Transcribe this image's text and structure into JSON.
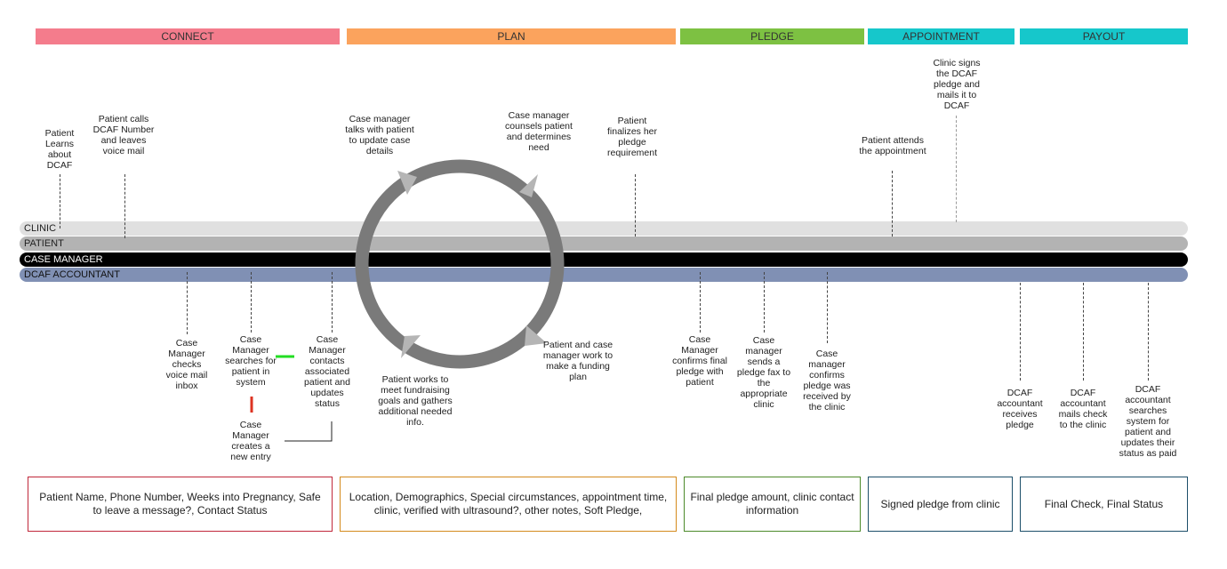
{
  "phases": [
    {
      "label": "CONNECT",
      "color": "#f47c8c"
    },
    {
      "label": "PLAN",
      "color": "#fba35d"
    },
    {
      "label": "PLEDGE",
      "color": "#7dc142"
    },
    {
      "label": "APPOINTMENT",
      "color": "#16c7cb"
    },
    {
      "label": "PAYOUT",
      "color": "#16c7cb"
    }
  ],
  "lanes": [
    {
      "label": "CLINIC",
      "color": "#e0e0e0"
    },
    {
      "label": "PATIENT",
      "color": "#b3b3b3"
    },
    {
      "label": "CASE MANAGER",
      "color": "#000000"
    },
    {
      "label": "DCAF ACCOUNTANT",
      "color": "#8090b4"
    }
  ],
  "steps": {
    "patient_learns": "Patient Learns about DCAF",
    "patient_calls": "Patient calls DCAF Number and leaves voice mail",
    "cm_checks_voicemail": "Case Manager checks voice mail inbox",
    "cm_searches": "Case Manager searches for patient in system",
    "cm_contacts": "Case Manager contacts associated patient and updates status",
    "cm_creates_entry": "Case Manager creates a new entry",
    "cm_talks": "Case manager talks with patient to update case details",
    "cm_counsels": "Case manager counsels patient and determines need",
    "patient_finalizes": "Patient finalizes her pledge requirement",
    "patient_works": "Patient works to meet fundraising goals and gathers additional needed info.",
    "funding_plan": "Patient and case manager work to make a funding plan",
    "cm_confirms_final": "Case Manager confirms final pledge with patient",
    "cm_sends_fax": "Case manager sends a pledge fax to the appropriate clinic",
    "cm_confirms_received": "Case manager confirms pledge was received by the clinic",
    "patient_attends": "Patient attends the appointment",
    "clinic_signs": "Clinic signs the DCAF pledge and mails it to DCAF",
    "acct_receives": "DCAF accountant receives pledge",
    "acct_mails": "DCAF accountant mails check to the clinic",
    "acct_searches": "DCAF accountant searches system for patient and updates their status as paid"
  },
  "data_boxes": [
    {
      "text": "Patient Name, Phone Number, Weeks into Pregnancy, Safe to leave a message?, Contact Status",
      "border": "#c0283a"
    },
    {
      "text": "Location, Demographics, Special circumstances, appointment time, clinic, verified with ultrasound?, other notes, Soft Pledge,",
      "border": "#d48a1c"
    },
    {
      "text": "Final pledge amount, clinic contact information",
      "border": "#4c8a2a"
    },
    {
      "text": "Signed pledge from clinic",
      "border": "#1d4f6a"
    },
    {
      "text": "Final Check, Final Status",
      "border": "#1d4f6a"
    }
  ],
  "colors": {
    "cycle_ring": "#7a7a7a",
    "cycle_arrow": "#b5b5b5",
    "yes_mark": "#22dd22",
    "no_mark": "#dd3322"
  }
}
